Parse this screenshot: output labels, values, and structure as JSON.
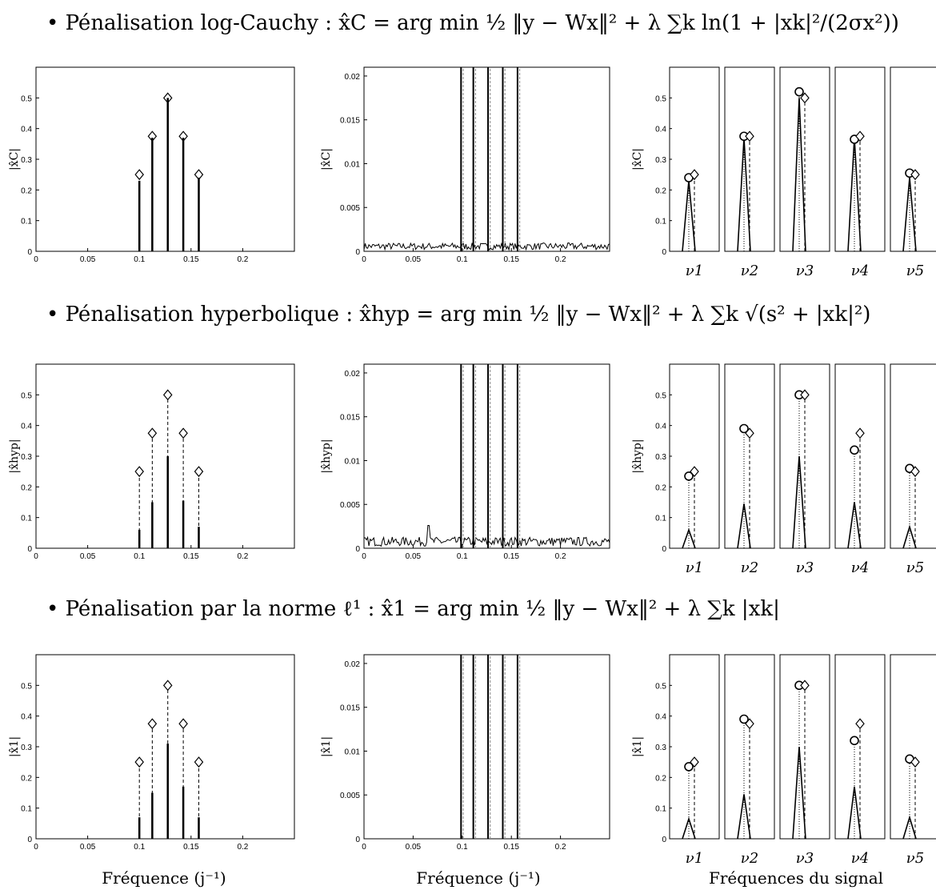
{
  "headings": [
    "• Pénalisation log-Cauchy : x̂C = arg min ½ ‖y − Wx‖² + λ ∑k ln(1 + |xk|²/(2σx²))",
    "• Pénalisation hyperbolique : x̂hyp = arg min ½ ‖y − Wx‖² + λ ∑k √(s² + |xk|²)",
    "• Pénalisation par la norme ℓ¹ : x̂1 = arg min ½ ‖y − Wx‖² + λ ∑k |xk|"
  ],
  "bottom_labels": {
    "col1": "Fréquence (j⁻¹)",
    "col2": "Fréquence (j⁻¹)",
    "col3": "Fréquences du signal"
  },
  "chart_data": {
    "type": "line",
    "true_frequencies": [
      0.1,
      0.1125,
      0.1275,
      0.1425,
      0.1575
    ],
    "true_amplitudes": [
      0.25,
      0.375,
      0.5,
      0.375,
      0.25
    ],
    "rows": [
      {
        "ylabel": "|x̂C|",
        "full": {
          "xlim": [
            0,
            0.25
          ],
          "ylim": [
            0,
            0.6
          ],
          "xticks": [
            "0",
            "0.05",
            "0.1",
            "0.15",
            "0.2"
          ],
          "yticks": [
            "0",
            "0.1",
            "0.2",
            "0.3",
            "0.4",
            "0.5"
          ],
          "estimated_peaks": [
            0.23,
            0.37,
            0.5,
            0.37,
            0.24
          ]
        },
        "zoom": {
          "ylim": [
            0,
            0.021
          ],
          "yticks": [
            "0",
            "0.005",
            "0.01",
            "0.015",
            "0.02"
          ],
          "noise_level": 0.0006
        },
        "detail": {
          "yticks": [
            "0",
            "0.1",
            "0.2",
            "0.3",
            "0.4",
            "0.5"
          ],
          "panels": [
            "ν1",
            "ν2",
            "ν3",
            "ν4",
            "ν5"
          ],
          "circle_values": [
            0.24,
            0.375,
            0.52,
            0.365,
            0.255
          ],
          "peak_values": [
            0.23,
            0.37,
            0.5,
            0.37,
            0.24
          ]
        }
      },
      {
        "ylabel": "|x̂hyp|",
        "full": {
          "xlim": [
            0,
            0.25
          ],
          "ylim": [
            0,
            0.6
          ],
          "xticks": [
            "0",
            "0.05",
            "0.1",
            "0.15",
            "0.2"
          ],
          "yticks": [
            "0",
            "0.1",
            "0.2",
            "0.3",
            "0.4",
            "0.5"
          ],
          "estimated_peaks": [
            0.06,
            0.15,
            0.3,
            0.155,
            0.07
          ]
        },
        "zoom": {
          "ylim": [
            0,
            0.021
          ],
          "yticks": [
            "0",
            "0.005",
            "0.01",
            "0.015",
            "0.02"
          ],
          "noise_level": 0.0008
        },
        "detail": {
          "yticks": [
            "0",
            "0.1",
            "0.2",
            "0.3",
            "0.4",
            "0.5"
          ],
          "panels": [
            "ν1",
            "ν2",
            "ν3",
            "ν4",
            "ν5"
          ],
          "circle_values": [
            0.235,
            0.39,
            0.5,
            0.32,
            0.26
          ],
          "peak_values": [
            0.06,
            0.145,
            0.3,
            0.15,
            0.07
          ]
        }
      },
      {
        "ylabel": "|x̂1|",
        "full": {
          "xlim": [
            0,
            0.25
          ],
          "ylim": [
            0,
            0.6
          ],
          "xticks": [
            "0",
            "0.05",
            "0.1",
            "0.15",
            "0.2"
          ],
          "yticks": [
            "0",
            "0.1",
            "0.2",
            "0.3",
            "0.4",
            "0.5"
          ],
          "estimated_peaks": [
            0.07,
            0.15,
            0.31,
            0.17,
            0.07
          ]
        },
        "zoom": {
          "ylim": [
            0,
            0.021
          ],
          "yticks": [
            "0",
            "0.005",
            "0.01",
            "0.015",
            "0.02"
          ],
          "noise_level": 0
        },
        "detail": {
          "yticks": [
            "0",
            "0.1",
            "0.2",
            "0.3",
            "0.4",
            "0.5"
          ],
          "panels": [
            "ν1",
            "ν2",
            "ν3",
            "ν4",
            "ν5"
          ],
          "circle_values": [
            0.235,
            0.39,
            0.5,
            0.32,
            0.26
          ],
          "peak_values": [
            0.065,
            0.145,
            0.3,
            0.17,
            0.07
          ]
        }
      }
    ]
  }
}
